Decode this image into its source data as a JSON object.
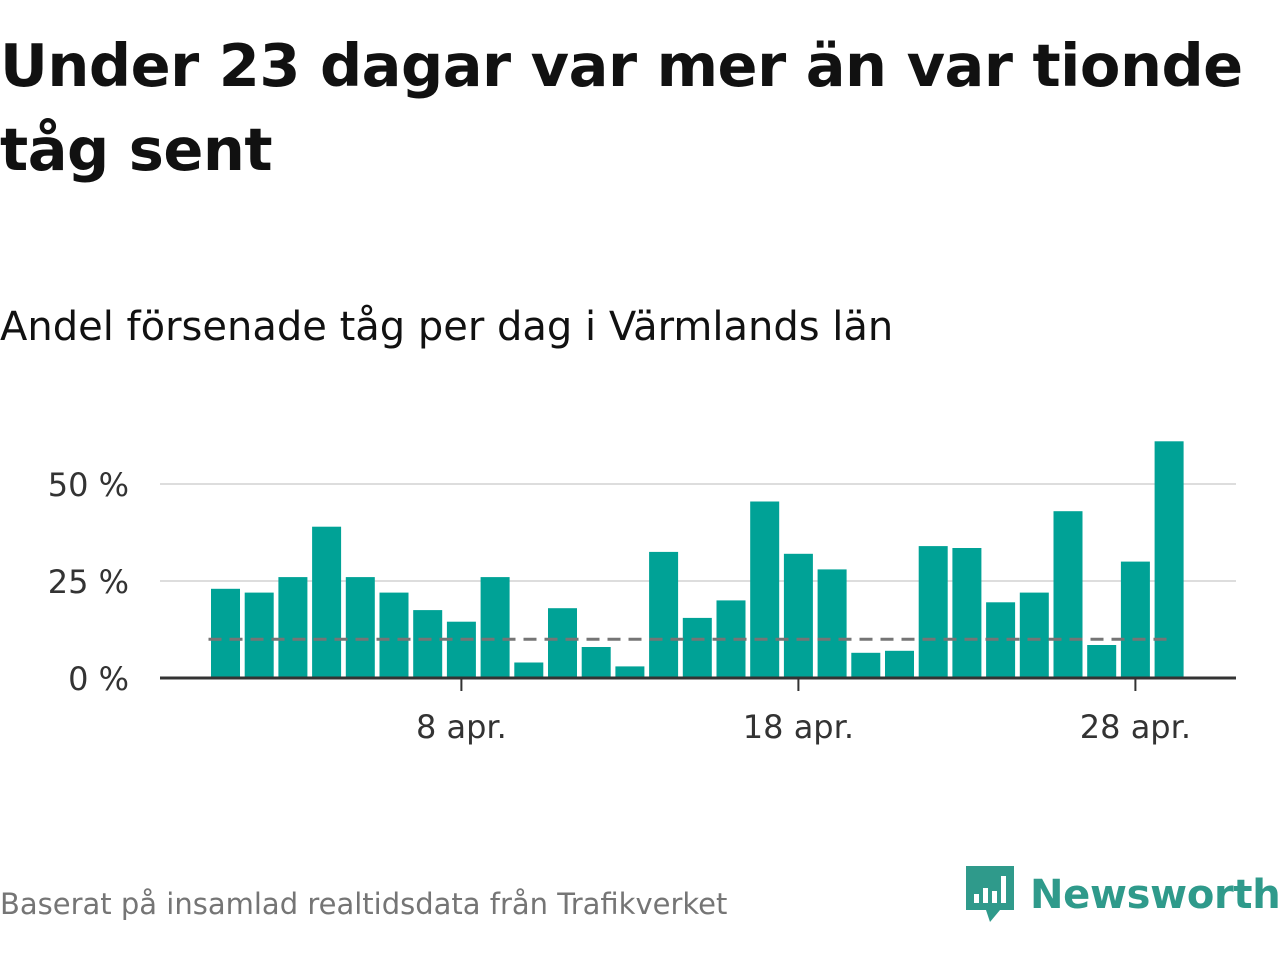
{
  "title": "Under 23 dagar var mer än var tionde tåg sent",
  "subtitle": "Andel försenade tåg per dag i Värmlands län",
  "source": "Baserat på insamlad realtidsdata från Trafikverket",
  "brand": {
    "name": "Newsworthy",
    "icon": "newsworthy-logo-icon",
    "color": "#2f9a8b"
  },
  "colors": {
    "bar": "#00a296",
    "reference_line": "#757575",
    "gridline": "#dddddd",
    "axis": "#333333"
  },
  "chart_data": {
    "type": "bar",
    "x": [
      "1 apr.",
      "2 apr.",
      "3 apr.",
      "4 apr.",
      "5 apr.",
      "6 apr.",
      "7 apr.",
      "8 apr.",
      "9 apr.",
      "10 apr.",
      "11 apr.",
      "12 apr.",
      "13 apr.",
      "14 apr.",
      "15 apr.",
      "16 apr.",
      "17 apr.",
      "18 apr.",
      "19 apr.",
      "20 apr.",
      "21 apr.",
      "22 apr.",
      "23 apr.",
      "24 apr.",
      "25 apr.",
      "26 apr.",
      "27 apr.",
      "28 apr.",
      "29 apr."
    ],
    "values": [
      23,
      22,
      26,
      39,
      26,
      22,
      17.5,
      14.5,
      26,
      4,
      18,
      8,
      3,
      32.5,
      15.5,
      20,
      45.5,
      32,
      28,
      6.5,
      7,
      34,
      33.5,
      19.5,
      22,
      43,
      8.5,
      30,
      61
    ],
    "reference_line": 10,
    "ylim": [
      0,
      62
    ],
    "yticks": [
      0,
      25,
      50
    ],
    "ytick_labels": [
      "0 %",
      "25 %",
      "50 %"
    ],
    "xtick_labels": [
      {
        "at": "8 apr.",
        "label": "8 apr."
      },
      {
        "at": "18 apr.",
        "label": "18 apr."
      },
      {
        "at": "28 apr.",
        "label": "28 apr."
      }
    ],
    "grid": true
  }
}
